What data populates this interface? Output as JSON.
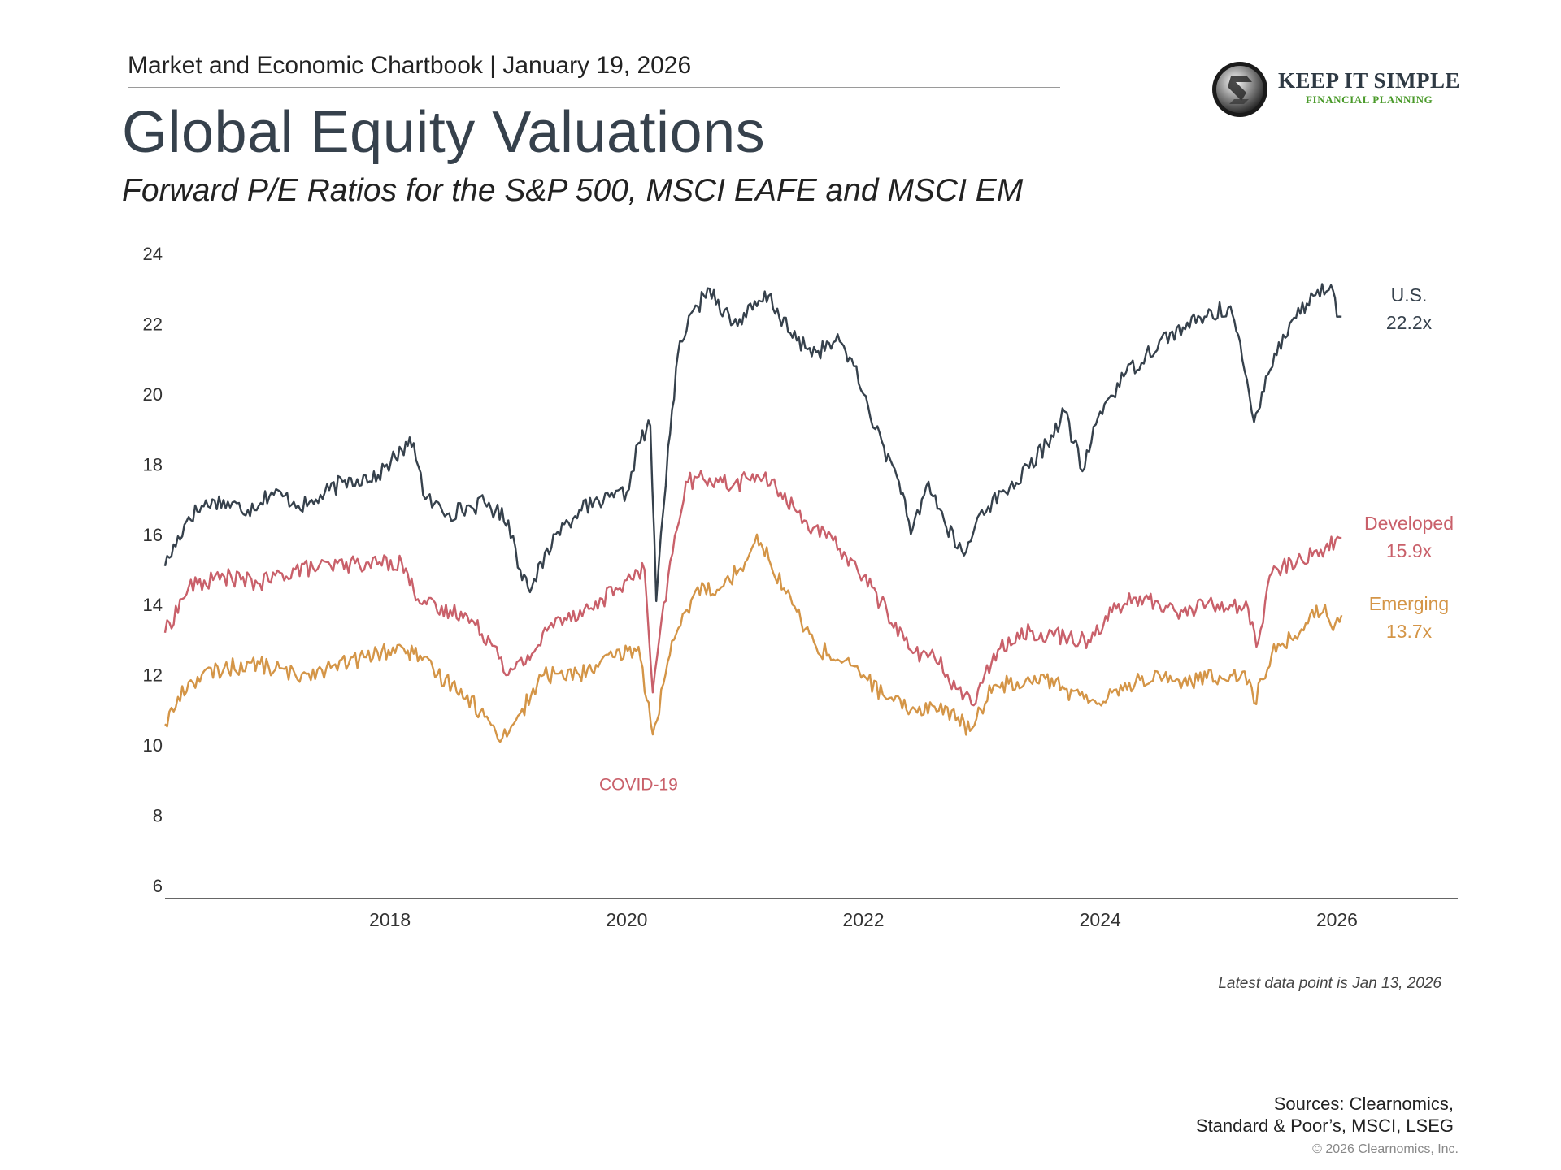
{
  "header": {
    "chartbook_line": "Market and Economic Chartbook | January 19, 2026",
    "logo_top": "KEEP IT SIMPLE",
    "logo_bottom": "FINANCIAL PLANNING",
    "title": "Global Equity Valuations",
    "subtitle": "Forward P/E Ratios for the S&P 500, MSCI EAFE and MSCI EM"
  },
  "footer": {
    "latest_note": "Latest data point is Jan 13, 2026",
    "sources_line1": "Sources: Clearnomics,",
    "sources_line2": "Standard & Poor’s, MSCI, LSEG",
    "copyright": "© 2026 Clearnomics, Inc."
  },
  "chart_data": {
    "type": "line",
    "title": "Global Equity Valuations",
    "xlabel": "",
    "ylabel": "",
    "ylim": [
      6,
      24
    ],
    "xlim": [
      2016.1,
      2027.0
    ],
    "yticks": [
      "6",
      "8",
      "10",
      "12",
      "14",
      "16",
      "18",
      "20",
      "22",
      "24"
    ],
    "xticks": [
      "2018",
      "2020",
      "2022",
      "2024",
      "2026"
    ],
    "grid": false,
    "annotations": [
      {
        "text": "COVID-19",
        "x": 2020.1,
        "y": 8.9
      }
    ],
    "series": [
      {
        "name": "U.S.",
        "end_label": "22.2x",
        "color": "#36414c",
        "points": [
          [
            2016.1,
            15.1
          ],
          [
            2016.3,
            16.5
          ],
          [
            2016.5,
            17.0
          ],
          [
            2016.8,
            16.7
          ],
          [
            2017.0,
            17.2
          ],
          [
            2017.3,
            16.8
          ],
          [
            2017.6,
            17.5
          ],
          [
            2017.9,
            17.7
          ],
          [
            2018.1,
            18.4
          ],
          [
            2018.2,
            18.6
          ],
          [
            2018.3,
            17.0
          ],
          [
            2018.5,
            16.6
          ],
          [
            2018.8,
            16.9
          ],
          [
            2019.0,
            16.4
          ],
          [
            2019.1,
            15.0
          ],
          [
            2019.2,
            14.5
          ],
          [
            2019.4,
            16.0
          ],
          [
            2019.6,
            16.7
          ],
          [
            2019.8,
            16.9
          ],
          [
            2020.0,
            17.2
          ],
          [
            2020.1,
            18.6
          ],
          [
            2020.2,
            19.1
          ],
          [
            2020.25,
            14.1
          ],
          [
            2020.35,
            18.5
          ],
          [
            2020.45,
            21.5
          ],
          [
            2020.6,
            22.5
          ],
          [
            2020.7,
            23.0
          ],
          [
            2020.9,
            22.0
          ],
          [
            2021.1,
            22.5
          ],
          [
            2021.2,
            22.8
          ],
          [
            2021.4,
            21.6
          ],
          [
            2021.6,
            21.2
          ],
          [
            2021.8,
            21.5
          ],
          [
            2021.9,
            21.0
          ],
          [
            2022.0,
            20.0
          ],
          [
            2022.1,
            19.0
          ],
          [
            2022.3,
            17.5
          ],
          [
            2022.4,
            16.0
          ],
          [
            2022.55,
            17.5
          ],
          [
            2022.7,
            16.2
          ],
          [
            2022.85,
            15.4
          ],
          [
            2023.0,
            16.7
          ],
          [
            2023.2,
            17.2
          ],
          [
            2023.4,
            17.9
          ],
          [
            2023.55,
            18.6
          ],
          [
            2023.7,
            19.5
          ],
          [
            2023.85,
            17.8
          ],
          [
            2024.0,
            19.5
          ],
          [
            2024.2,
            20.5
          ],
          [
            2024.5,
            21.5
          ],
          [
            2024.7,
            21.9
          ],
          [
            2024.9,
            22.2
          ],
          [
            2025.1,
            22.5
          ],
          [
            2025.2,
            21.0
          ],
          [
            2025.3,
            19.2
          ],
          [
            2025.4,
            20.5
          ],
          [
            2025.6,
            22.0
          ],
          [
            2025.8,
            22.8
          ],
          [
            2025.95,
            23.1
          ],
          [
            2026.0,
            22.2
          ],
          [
            2026.04,
            22.2
          ]
        ]
      },
      {
        "name": "Developed",
        "end_label": "15.9x",
        "color": "#c9606a",
        "points": [
          [
            2016.1,
            13.2
          ],
          [
            2016.3,
            14.5
          ],
          [
            2016.6,
            14.8
          ],
          [
            2016.9,
            14.6
          ],
          [
            2017.2,
            15.0
          ],
          [
            2017.5,
            15.1
          ],
          [
            2017.8,
            15.2
          ],
          [
            2018.1,
            15.2
          ],
          [
            2018.2,
            14.4
          ],
          [
            2018.4,
            13.8
          ],
          [
            2018.6,
            13.8
          ],
          [
            2018.9,
            12.8
          ],
          [
            2019.0,
            12.0
          ],
          [
            2019.2,
            12.6
          ],
          [
            2019.4,
            13.6
          ],
          [
            2019.7,
            13.9
          ],
          [
            2020.0,
            14.7
          ],
          [
            2020.15,
            15.0
          ],
          [
            2020.22,
            11.5
          ],
          [
            2020.35,
            14.8
          ],
          [
            2020.5,
            17.5
          ],
          [
            2020.7,
            17.6
          ],
          [
            2020.9,
            17.4
          ],
          [
            2021.1,
            17.7
          ],
          [
            2021.3,
            17.2
          ],
          [
            2021.5,
            16.4
          ],
          [
            2021.8,
            15.6
          ],
          [
            2022.0,
            14.8
          ],
          [
            2022.2,
            13.8
          ],
          [
            2022.4,
            12.7
          ],
          [
            2022.6,
            12.5
          ],
          [
            2022.8,
            11.6
          ],
          [
            2022.95,
            11.2
          ],
          [
            2023.1,
            12.6
          ],
          [
            2023.3,
            13.2
          ],
          [
            2023.5,
            13.2
          ],
          [
            2023.7,
            13.1
          ],
          [
            2023.9,
            13.0
          ],
          [
            2024.1,
            13.8
          ],
          [
            2024.3,
            14.2
          ],
          [
            2024.5,
            14.0
          ],
          [
            2024.7,
            13.8
          ],
          [
            2024.9,
            14.0
          ],
          [
            2025.1,
            14.0
          ],
          [
            2025.25,
            13.9
          ],
          [
            2025.32,
            12.8
          ],
          [
            2025.45,
            14.9
          ],
          [
            2025.7,
            15.3
          ],
          [
            2025.9,
            15.6
          ],
          [
            2026.04,
            15.9
          ]
        ]
      },
      {
        "name": "Emerging",
        "end_label": "13.7x",
        "color": "#d49547",
        "points": [
          [
            2016.1,
            10.6
          ],
          [
            2016.3,
            11.8
          ],
          [
            2016.6,
            12.2
          ],
          [
            2016.9,
            12.3
          ],
          [
            2017.2,
            12.0
          ],
          [
            2017.5,
            12.2
          ],
          [
            2017.8,
            12.5
          ],
          [
            2018.1,
            12.8
          ],
          [
            2018.2,
            12.6
          ],
          [
            2018.4,
            12.0
          ],
          [
            2018.6,
            11.6
          ],
          [
            2018.8,
            10.8
          ],
          [
            2018.95,
            10.2
          ],
          [
            2019.1,
            10.9
          ],
          [
            2019.3,
            12.0
          ],
          [
            2019.6,
            12.0
          ],
          [
            2019.9,
            12.5
          ],
          [
            2020.1,
            12.8
          ],
          [
            2020.22,
            10.3
          ],
          [
            2020.4,
            13.0
          ],
          [
            2020.6,
            14.5
          ],
          [
            2020.8,
            14.5
          ],
          [
            2021.0,
            15.2
          ],
          [
            2021.1,
            16.0
          ],
          [
            2021.2,
            15.3
          ],
          [
            2021.4,
            14.0
          ],
          [
            2021.6,
            12.8
          ],
          [
            2021.8,
            12.4
          ],
          [
            2022.0,
            12.0
          ],
          [
            2022.2,
            11.3
          ],
          [
            2022.4,
            11.0
          ],
          [
            2022.6,
            11.1
          ],
          [
            2022.8,
            10.8
          ],
          [
            2022.9,
            10.4
          ],
          [
            2023.1,
            11.7
          ],
          [
            2023.3,
            11.8
          ],
          [
            2023.5,
            12.0
          ],
          [
            2023.7,
            11.6
          ],
          [
            2023.9,
            11.2
          ],
          [
            2024.1,
            11.5
          ],
          [
            2024.3,
            11.8
          ],
          [
            2024.5,
            12.0
          ],
          [
            2024.7,
            11.8
          ],
          [
            2024.9,
            11.9
          ],
          [
            2025.1,
            12.0
          ],
          [
            2025.22,
            12.1
          ],
          [
            2025.3,
            11.2
          ],
          [
            2025.45,
            12.6
          ],
          [
            2025.7,
            13.3
          ],
          [
            2025.9,
            14.0
          ],
          [
            2025.95,
            13.4
          ],
          [
            2026.04,
            13.7
          ]
        ]
      }
    ]
  }
}
